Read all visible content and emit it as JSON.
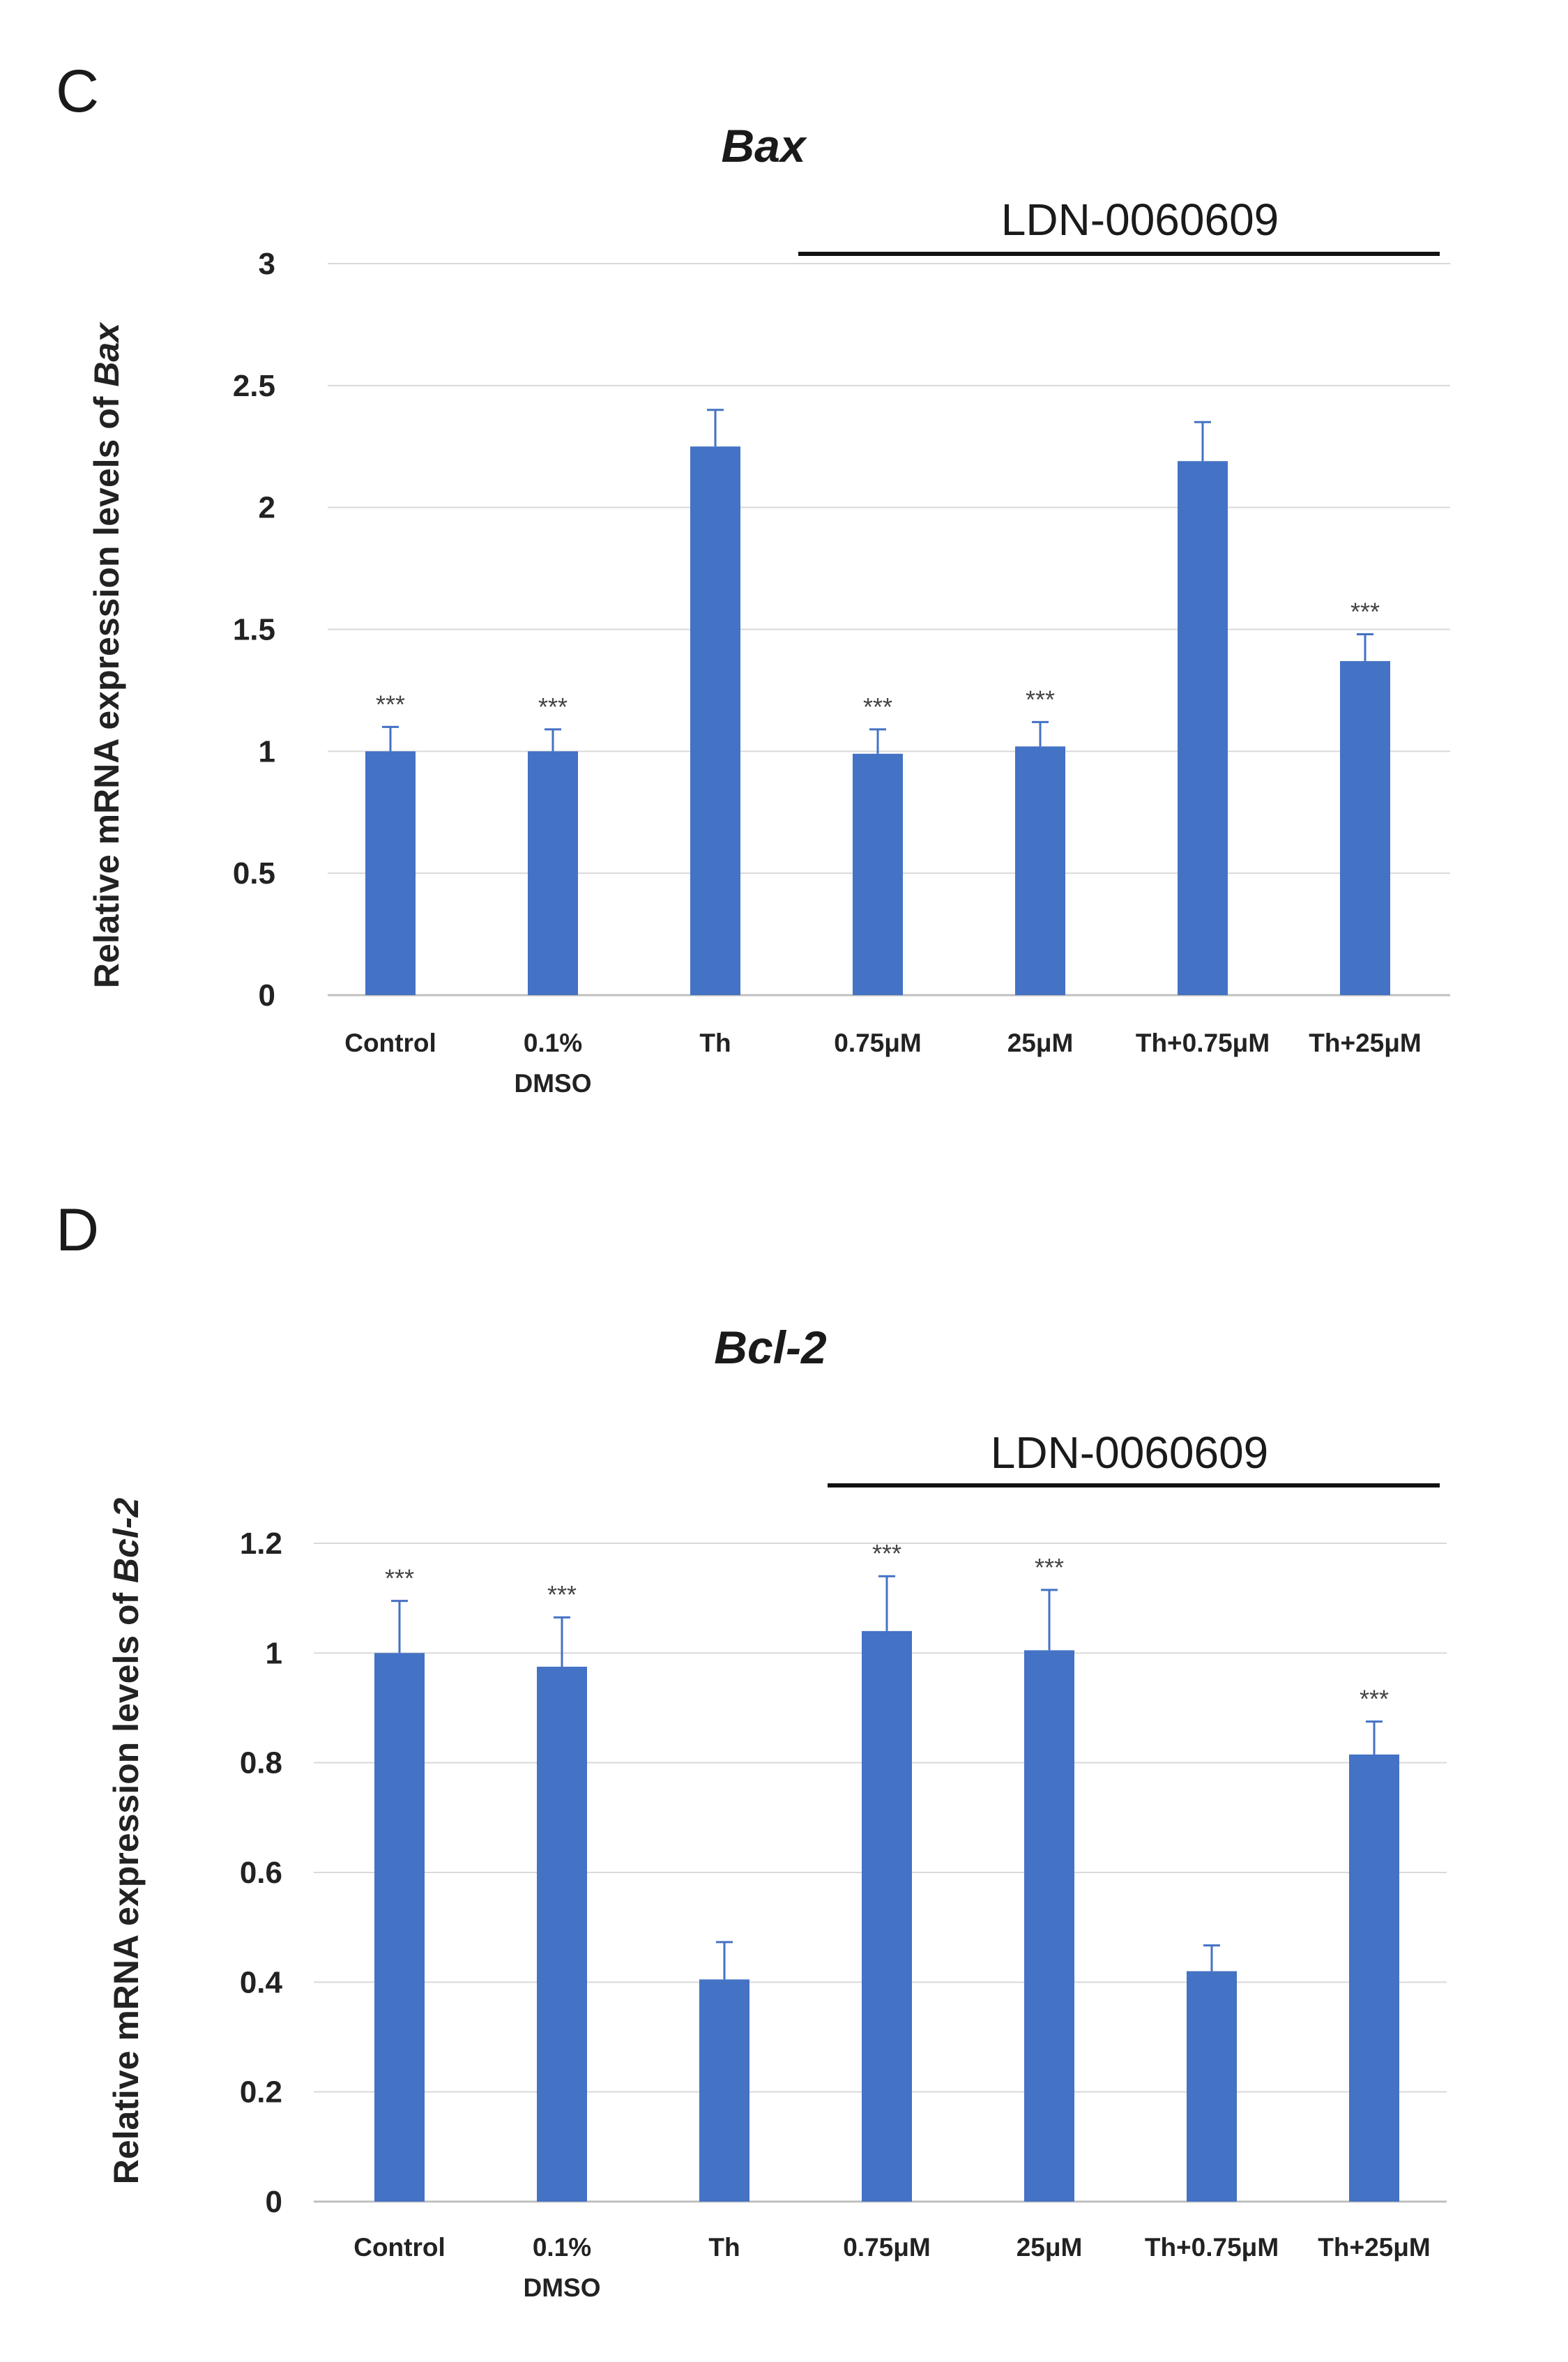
{
  "panels": [
    {
      "letter": "C",
      "bracket_label": "LDN-0060609",
      "ylabel_prefix": "Relative mRNA expression levels of ",
      "ylabel_gene": "Bax",
      "chart_data": {
        "type": "bar",
        "title": "Bax",
        "categories": [
          "Control",
          "0.1% DMSO",
          "Th",
          "0.75μM",
          "25μM",
          "Th+0.75μM",
          "Th+25μM"
        ],
        "category_lines": [
          [
            "Control"
          ],
          [
            "0.1%",
            "DMSO"
          ],
          [
            "Th"
          ],
          [
            "0.75μM"
          ],
          [
            "25μM"
          ],
          [
            "Th+0.75μM"
          ],
          [
            "Th+25μM"
          ]
        ],
        "values": [
          1.0,
          1.0,
          2.25,
          0.99,
          1.02,
          2.19,
          1.37
        ],
        "errors": [
          0.1,
          0.09,
          0.15,
          0.1,
          0.1,
          0.16,
          0.11
        ],
        "significance": [
          "***",
          "***",
          "",
          "***",
          "***",
          "",
          "***"
        ],
        "ylim": [
          0,
          3
        ],
        "yticks": [
          0,
          0.5,
          1,
          1.5,
          2,
          2.5,
          3
        ],
        "ytick_labels": [
          "0",
          "0.5",
          "1",
          "1.5",
          "2",
          "2.5",
          "3"
        ],
        "xlabel": "",
        "ylabel": "Relative mRNA expression levels of Bax",
        "grid": true,
        "bracket_span": [
          "0.75μM",
          "Th+25μM"
        ],
        "color": "#4472c4"
      }
    },
    {
      "letter": "D",
      "bracket_label": "LDN-0060609",
      "ylabel_prefix": "Relative mRNA expression levels of ",
      "ylabel_gene": "Bcl-2",
      "chart_data": {
        "type": "bar",
        "title": "Bcl-2",
        "categories": [
          "Control",
          "0.1% DMSO",
          "Th",
          "0.75μM",
          "25μM",
          "Th+0.75μM",
          "Th+25μM"
        ],
        "category_lines": [
          [
            "Control"
          ],
          [
            "0.1%",
            "DMSO"
          ],
          [
            "Th"
          ],
          [
            "0.75μM"
          ],
          [
            "25μM"
          ],
          [
            "Th+0.75μM"
          ],
          [
            "Th+25μM"
          ]
        ],
        "values": [
          1.0,
          0.975,
          0.405,
          1.04,
          1.005,
          0.42,
          0.815
        ],
        "errors": [
          0.095,
          0.09,
          0.068,
          0.1,
          0.11,
          0.047,
          0.06
        ],
        "significance": [
          "***",
          "***",
          "",
          "***",
          "***",
          "",
          "***"
        ],
        "ylim": [
          0,
          1.2
        ],
        "yticks": [
          0,
          0.2,
          0.4,
          0.6,
          0.8,
          1.0,
          1.2
        ],
        "ytick_labels": [
          "0",
          "0.2",
          "0.4",
          "0.6",
          "0.8",
          "1",
          "1.2"
        ],
        "xlabel": "",
        "ylabel": "Relative mRNA expression levels of Bcl-2",
        "grid": true,
        "bracket_span": [
          "0.75μM",
          "Th+25μM"
        ],
        "color": "#4472c4"
      }
    }
  ]
}
